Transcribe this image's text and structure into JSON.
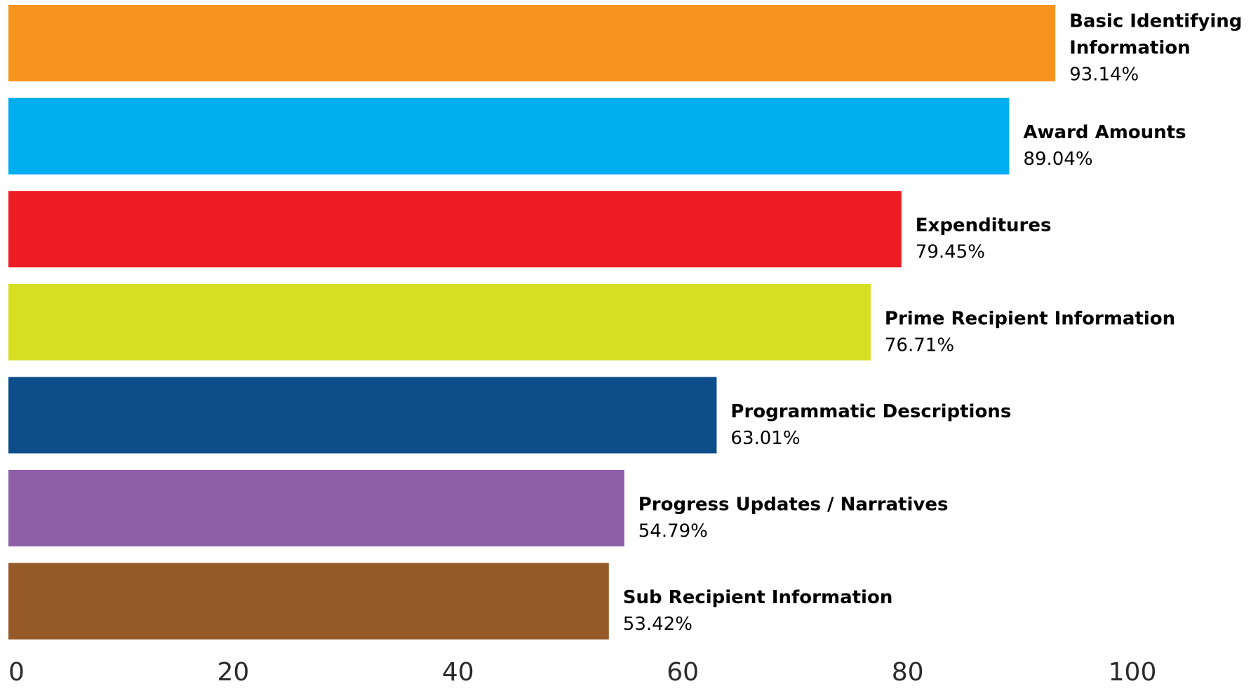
{
  "chart_data": {
    "type": "bar",
    "orientation": "horizontal",
    "categories": [
      [
        "Basic Identifying",
        "Information"
      ],
      [
        "Award Amounts"
      ],
      [
        "Expenditures"
      ],
      [
        "Prime Recipient Information"
      ],
      [
        "Programmatic Descriptions"
      ],
      [
        "Progress Updates / Narratives"
      ],
      [
        "Sub Recipient Information"
      ]
    ],
    "values": [
      93.14,
      89.04,
      79.45,
      76.71,
      63.01,
      54.79,
      53.42
    ],
    "value_labels": [
      "93.14%",
      "89.04%",
      "79.45%",
      "76.71%",
      "63.01%",
      "54.79%",
      "53.42%"
    ],
    "colors": [
      "#f7941d",
      "#00aeef",
      "#ed1c24",
      "#d7df23",
      "#0c4d8a",
      "#8e5ea7",
      "#955a28"
    ],
    "xlim": [
      0,
      100
    ],
    "x_ticks": [
      "0",
      "20",
      "40",
      "60",
      "80",
      "100"
    ],
    "grid": false,
    "legend": "none",
    "title": "",
    "xlabel": "",
    "ylabel": ""
  }
}
